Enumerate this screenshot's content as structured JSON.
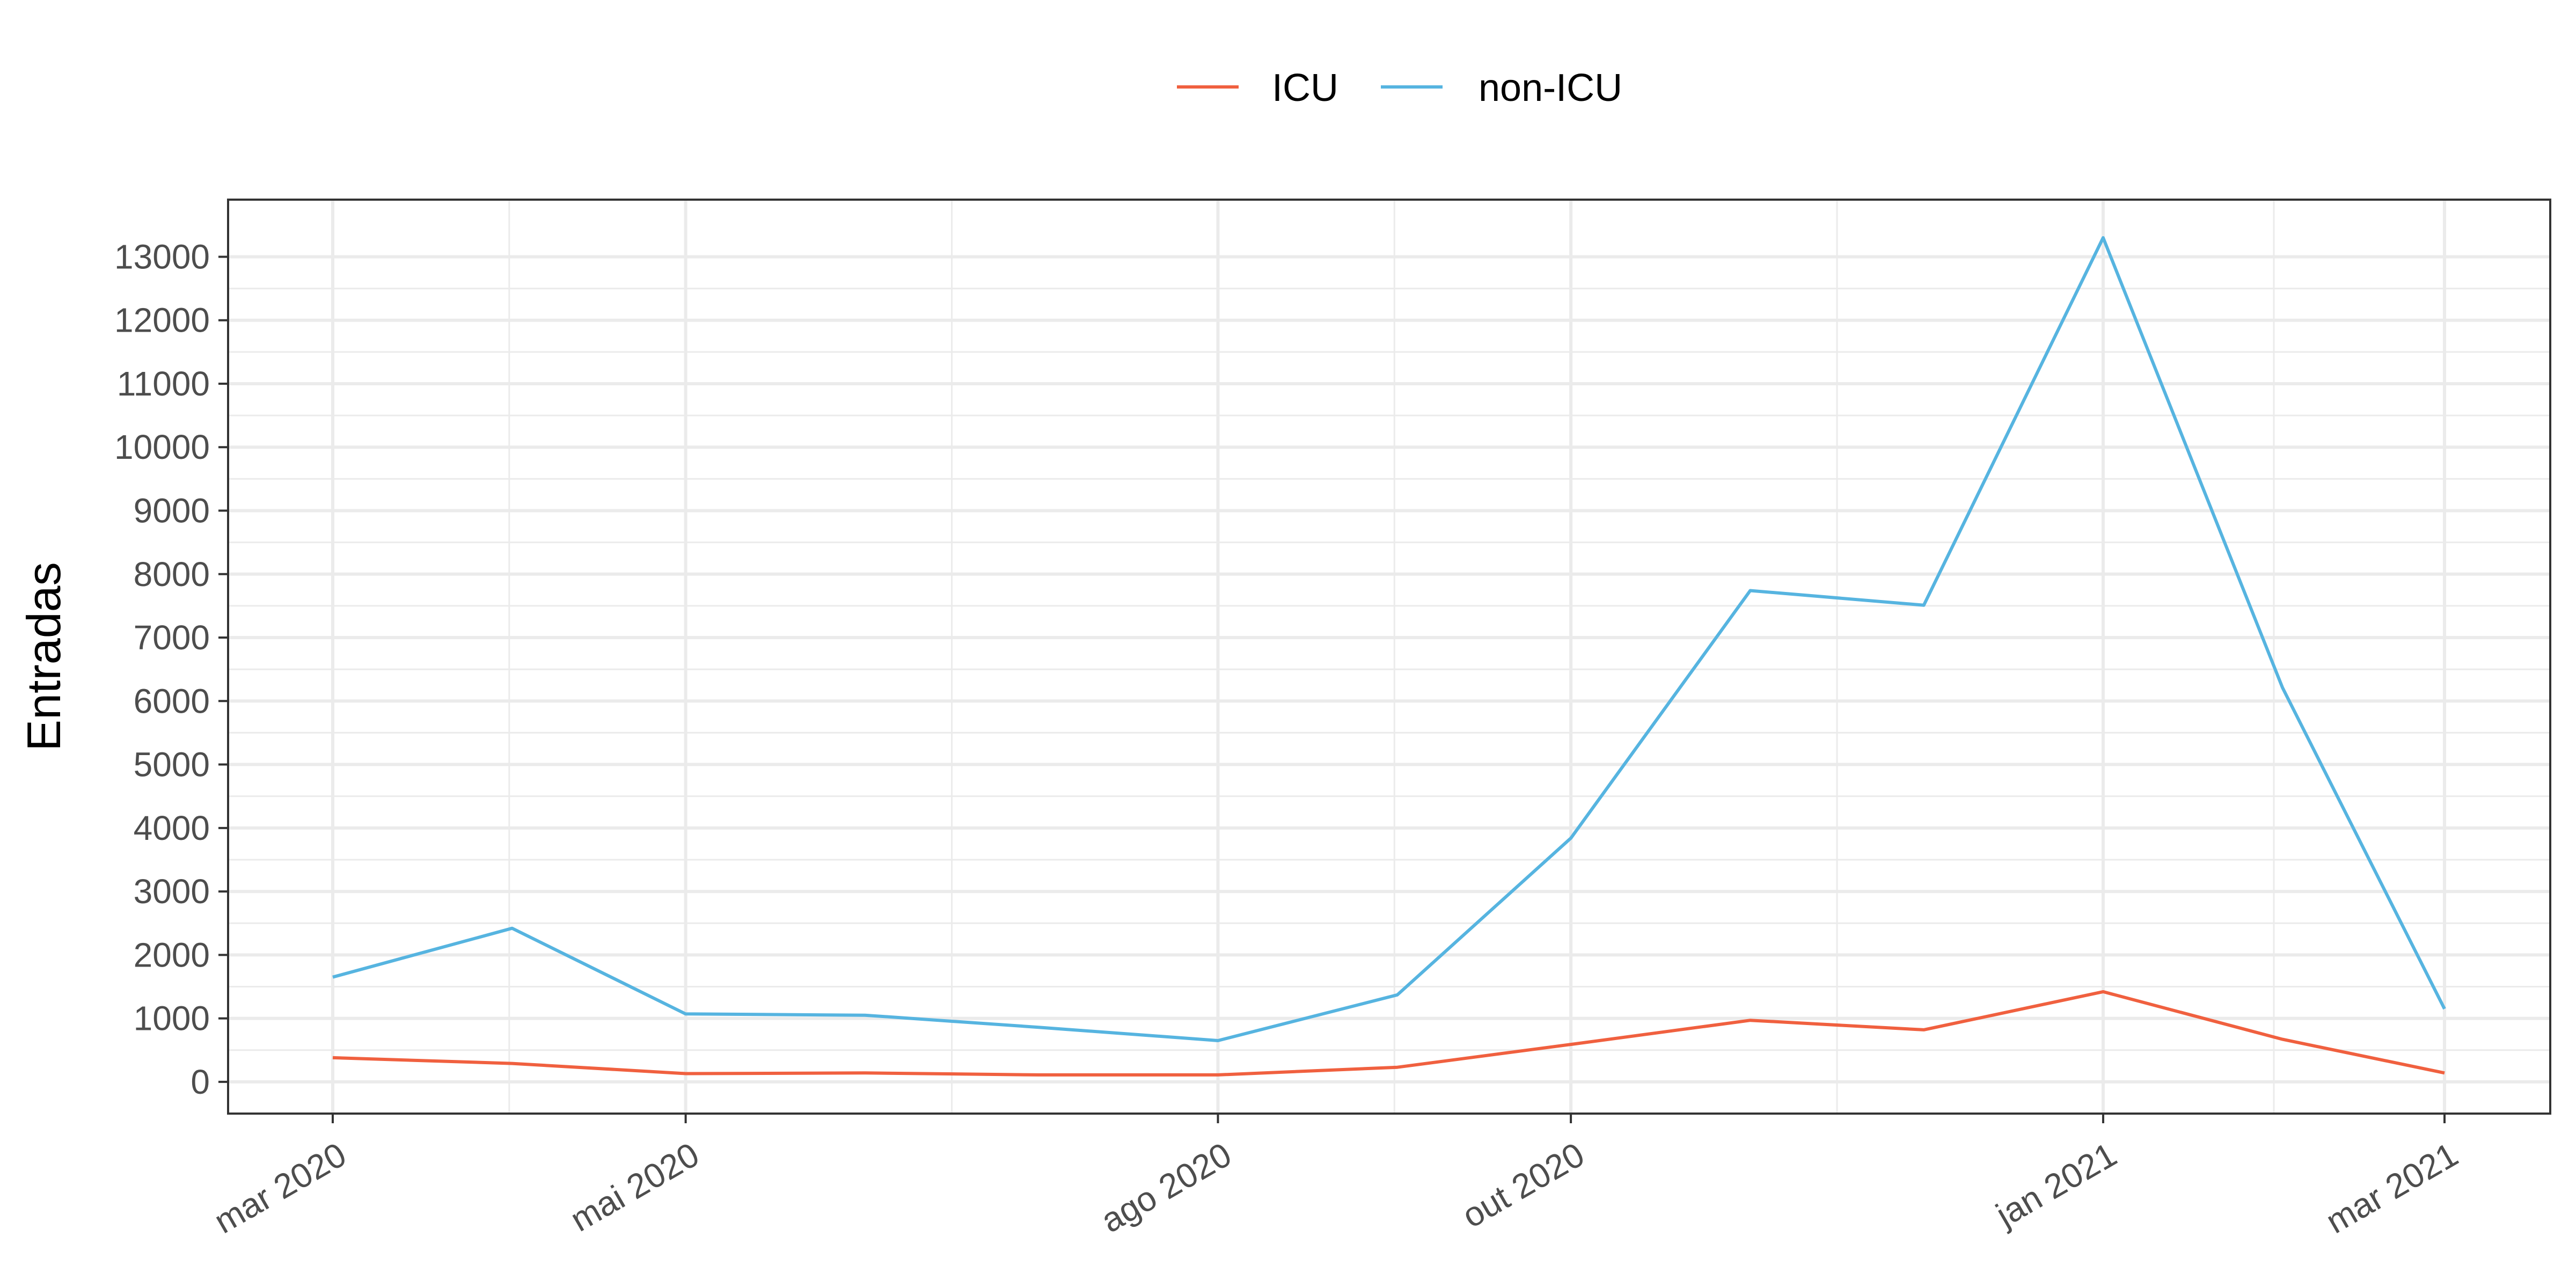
{
  "chart_data": {
    "type": "line",
    "title": "",
    "xlabel": "",
    "ylabel": "Entradas",
    "x": [
      "2020-03-01",
      "2020-04-01",
      "2020-05-01",
      "2020-06-01",
      "2020-07-01",
      "2020-08-01",
      "2020-09-01",
      "2020-10-01",
      "2020-11-01",
      "2020-12-01",
      "2021-01-01",
      "2021-02-01",
      "2021-03-01"
    ],
    "x_ticks": [
      {
        "date": "2020-03-01",
        "label": "mar 2020"
      },
      {
        "date": "2020-05-01",
        "label": "mai 2020"
      },
      {
        "date": "2020-08-01",
        "label": "ago 2020"
      },
      {
        "date": "2020-10-01",
        "label": "out 2020"
      },
      {
        "date": "2021-01-01",
        "label": "jan 2021"
      },
      {
        "date": "2021-03-01",
        "label": "mar 2021"
      }
    ],
    "ylim": [
      -500,
      13900
    ],
    "y_ticks": [
      0,
      1000,
      2000,
      3000,
      4000,
      5000,
      6000,
      7000,
      8000,
      9000,
      10000,
      11000,
      12000,
      13000
    ],
    "grid": true,
    "legend_position": "top",
    "series": [
      {
        "name": "ICU",
        "color": "#f0603f",
        "values": [
          380,
          290,
          130,
          140,
          110,
          110,
          230,
          590,
          970,
          820,
          1420,
          670,
          140
        ]
      },
      {
        "name": "non-ICU",
        "color": "#56b4e0",
        "values": [
          1650,
          2420,
          1070,
          1050,
          860,
          650,
          1370,
          3840,
          7740,
          7510,
          13300,
          6210,
          1150
        ]
      }
    ]
  }
}
